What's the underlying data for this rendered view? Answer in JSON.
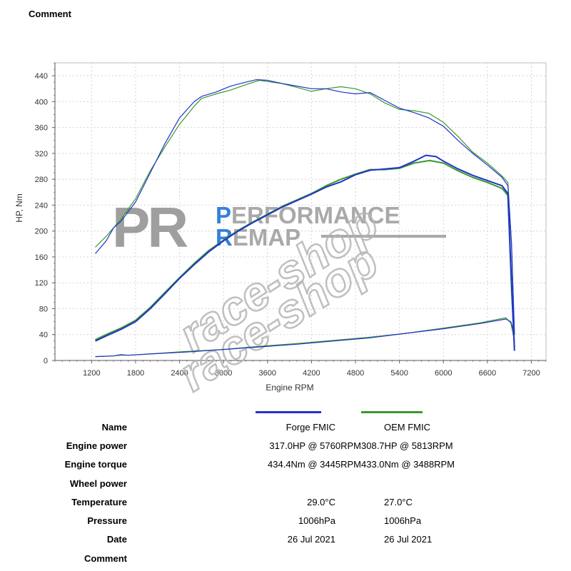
{
  "header": {
    "comment_label": "Comment"
  },
  "colors": {
    "forge": "#2233cc",
    "oem": "#3a9a2a",
    "logo_blue": "#2b7bd6",
    "logo_grey": "#a0a0a0"
  },
  "logo": {
    "pr": "PR",
    "line1_first": "P",
    "line1_rest": "ERFORMANCE",
    "line2_first": "R",
    "line2_rest": "EMAP",
    "watermark": "race-shop"
  },
  "chart_data": {
    "type": "line",
    "xlabel": "Engine RPM",
    "ylabel": "HP, Nm",
    "xlim": [
      700,
      7400
    ],
    "ylim": [
      0,
      460
    ],
    "xticks": [
      1200,
      1800,
      2400,
      3000,
      3600,
      4200,
      4800,
      5400,
      6000,
      6600,
      7200
    ],
    "yticks": [
      0,
      40,
      80,
      120,
      160,
      200,
      240,
      280,
      320,
      360,
      400,
      440
    ],
    "grid": true,
    "series": [
      {
        "name": "Forge FMIC",
        "kind": "torque",
        "color": "#2233cc",
        "x": [
          1250,
          1400,
          1500,
          1600,
          1800,
          2000,
          2200,
          2400,
          2600,
          2700,
          2900,
          3100,
          3300,
          3450,
          3600,
          3800,
          4000,
          4200,
          4400,
          4600,
          4800,
          5000,
          5200,
          5400,
          5600,
          5800,
          6000,
          6200,
          6400,
          6600,
          6800,
          6880,
          6930,
          6970
        ],
        "y": [
          165,
          185,
          205,
          215,
          245,
          290,
          335,
          375,
          400,
          408,
          415,
          424,
          430,
          434,
          433,
          428,
          424,
          420,
          420,
          415,
          412,
          414,
          402,
          390,
          383,
          375,
          362,
          340,
          320,
          302,
          283,
          270,
          180,
          40
        ]
      },
      {
        "name": "OEM FMIC",
        "kind": "torque",
        "color": "#3a9a2a",
        "x": [
          1250,
          1400,
          1500,
          1600,
          1800,
          2000,
          2200,
          2400,
          2600,
          2700,
          2900,
          3100,
          3300,
          3488,
          3600,
          3800,
          4000,
          4200,
          4400,
          4600,
          4800,
          5000,
          5200,
          5400,
          5600,
          5800,
          6000,
          6200,
          6400,
          6600,
          6800,
          6880,
          6930,
          6970
        ],
        "y": [
          175,
          192,
          205,
          218,
          250,
          293,
          330,
          365,
          393,
          405,
          412,
          418,
          426,
          433,
          431,
          428,
          422,
          416,
          420,
          423,
          420,
          412,
          398,
          388,
          386,
          382,
          368,
          346,
          322,
          305,
          285,
          275,
          180,
          40
        ]
      },
      {
        "name": "Forge FMIC",
        "kind": "power",
        "color": "#2233cc",
        "x": [
          1250,
          1400,
          1600,
          1800,
          2000,
          2200,
          2400,
          2600,
          2800,
          3000,
          3200,
          3400,
          3600,
          3800,
          4000,
          4200,
          4400,
          4600,
          4800,
          5000,
          5200,
          5400,
          5600,
          5760,
          5900,
          6000,
          6200,
          6400,
          6600,
          6800,
          6880,
          6930,
          6970
        ],
        "y": [
          30,
          38,
          48,
          60,
          80,
          103,
          127,
          148,
          168,
          185,
          200,
          213,
          225,
          237,
          247,
          257,
          268,
          276,
          287,
          294,
          296,
          298,
          308,
          317,
          315,
          308,
          296,
          286,
          278,
          270,
          258,
          120,
          15
        ]
      },
      {
        "name": "OEM FMIC",
        "kind": "power",
        "color": "#3a9a2a",
        "x": [
          1250,
          1400,
          1600,
          1800,
          2000,
          2200,
          2400,
          2600,
          2800,
          3000,
          3200,
          3400,
          3600,
          3800,
          4000,
          4200,
          4400,
          4600,
          4800,
          5000,
          5200,
          5400,
          5600,
          5813,
          6000,
          6200,
          6400,
          6600,
          6800,
          6880,
          6930,
          6970
        ],
        "y": [
          32,
          40,
          50,
          62,
          82,
          105,
          128,
          150,
          170,
          186,
          201,
          214,
          226,
          238,
          248,
          258,
          270,
          280,
          288,
          295,
          295,
          297,
          305,
          309,
          305,
          293,
          283,
          275,
          266,
          255,
          110,
          20
        ]
      },
      {
        "name": "Forge FMIC",
        "kind": "wheel",
        "color": "#2233cc",
        "x": [
          1250,
          1500,
          1600,
          1700,
          2000,
          2500,
          3000,
          3500,
          4000,
          4500,
          5000,
          5500,
          6000,
          6500,
          6850,
          6920,
          6970
        ],
        "y": [
          6,
          7,
          9,
          8,
          10,
          13,
          17,
          21,
          25,
          30,
          35,
          42,
          49,
          57,
          64,
          60,
          40
        ]
      },
      {
        "name": "OEM FMIC",
        "kind": "wheel",
        "color": "#3a9a2a",
        "x": [
          1250,
          1500,
          1600,
          1700,
          2000,
          2500,
          3000,
          3500,
          4000,
          4500,
          5000,
          5500,
          6000,
          6500,
          6850,
          6920,
          6970
        ],
        "y": [
          6,
          7,
          8,
          8,
          10,
          14,
          17,
          22,
          26,
          31,
          36,
          42,
          50,
          58,
          66,
          58,
          30
        ]
      }
    ]
  },
  "legend": [
    {
      "name": "Forge FMIC",
      "color": "#2233cc"
    },
    {
      "name": "OEM FMIC",
      "color": "#3a9a2a"
    }
  ],
  "table": {
    "rows": [
      {
        "label": "Name",
        "v1": "Forge FMIC",
        "v2": "OEM FMIC"
      },
      {
        "label": "Engine power",
        "v1": "317.0HP @ 5760RPM",
        "v2": "308.7HP @ 5813RPM"
      },
      {
        "label": "Engine torque",
        "v1": "434.4Nm @ 3445RPM",
        "v2": "433.0Nm @ 3488RPM"
      },
      {
        "label": "Wheel power",
        "v1": "",
        "v2": ""
      },
      {
        "label": "Temperature",
        "v1": "29.0°C",
        "v2": "27.0°C"
      },
      {
        "label": "Pressure",
        "v1": "1006hPa",
        "v2": "1006hPa"
      },
      {
        "label": "Date",
        "v1": "26 Jul 2021",
        "v2": "26 Jul 2021"
      },
      {
        "label": "Comment",
        "v1": "",
        "v2": ""
      }
    ]
  }
}
